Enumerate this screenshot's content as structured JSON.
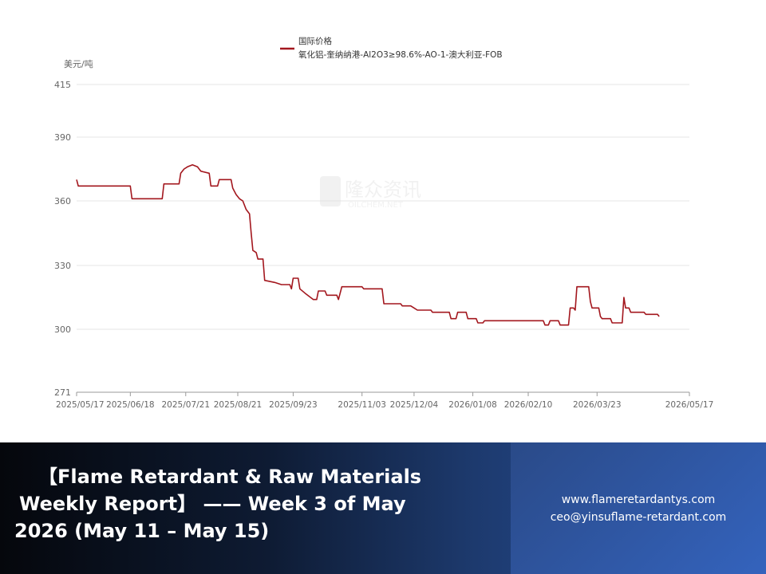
{
  "chart_data": {
    "type": "line",
    "title": "",
    "legend_group": "国际价格",
    "ylabel": "美元/吨",
    "xlabel": "",
    "ylim": [
      271,
      415
    ],
    "yticks": [
      271,
      300,
      330,
      360,
      390,
      415
    ],
    "xticks": [
      "2025/05/17",
      "2025/06/18",
      "2025/07/21",
      "2025/08/21",
      "2025/09/23",
      "2025/11/03",
      "2025/12/04",
      "2026/01/08",
      "2026/02/10",
      "2026/03/23",
      "2026/05/17"
    ],
    "x_start": "2025/05/17",
    "x_end": "2026/05/17",
    "grid": true,
    "legend_position": "top-center",
    "series": [
      {
        "name": "氧化铝-奎纳纳港-Al2O3≥98.6%-AO-1-澳大利亚-FOB",
        "color": "#a3171e",
        "points": [
          [
            "2025/05/17",
            370
          ],
          [
            "2025/05/18",
            367
          ],
          [
            "2025/06/18",
            367
          ],
          [
            "2025/06/19",
            361
          ],
          [
            "2025/07/07",
            361
          ],
          [
            "2025/07/08",
            368
          ],
          [
            "2025/07/17",
            368
          ],
          [
            "2025/07/18",
            373
          ],
          [
            "2025/07/20",
            375
          ],
          [
            "2025/07/22",
            376
          ],
          [
            "2025/07/25",
            377
          ],
          [
            "2025/07/28",
            376
          ],
          [
            "2025/07/30",
            374
          ],
          [
            "2025/08/04",
            373
          ],
          [
            "2025/08/05",
            367
          ],
          [
            "2025/08/09",
            367
          ],
          [
            "2025/08/10",
            370
          ],
          [
            "2025/08/17",
            370
          ],
          [
            "2025/08/18",
            366
          ],
          [
            "2025/08/20",
            363
          ],
          [
            "2025/08/22",
            361
          ],
          [
            "2025/08/24",
            360
          ],
          [
            "2025/08/26",
            356
          ],
          [
            "2025/08/28",
            354
          ],
          [
            "2025/08/29",
            345
          ],
          [
            "2025/08/30",
            337
          ],
          [
            "2025/09/01",
            336
          ],
          [
            "2025/09/02",
            333
          ],
          [
            "2025/09/05",
            333
          ],
          [
            "2025/09/06",
            323
          ],
          [
            "2025/09/12",
            322
          ],
          [
            "2025/09/16",
            321
          ],
          [
            "2025/09/21",
            321
          ],
          [
            "2025/09/22",
            319
          ],
          [
            "2025/09/23",
            324
          ],
          [
            "2025/09/26",
            324
          ],
          [
            "2025/09/27",
            319
          ],
          [
            "2025/09/30",
            317
          ],
          [
            "2025/10/05",
            314
          ],
          [
            "2025/10/07",
            314
          ],
          [
            "2025/10/08",
            318
          ],
          [
            "2025/10/12",
            318
          ],
          [
            "2025/10/13",
            316
          ],
          [
            "2025/10/19",
            316
          ],
          [
            "2025/10/20",
            314
          ],
          [
            "2025/10/22",
            320
          ],
          [
            "2025/11/03",
            320
          ],
          [
            "2025/11/04",
            319
          ],
          [
            "2025/11/15",
            319
          ],
          [
            "2025/11/16",
            312
          ],
          [
            "2025/11/26",
            312
          ],
          [
            "2025/11/27",
            311
          ],
          [
            "2025/12/02",
            311
          ],
          [
            "2025/12/04",
            310
          ],
          [
            "2025/12/06",
            309
          ],
          [
            "2025/12/14",
            309
          ],
          [
            "2025/12/15",
            308
          ],
          [
            "2025/12/25",
            308
          ],
          [
            "2025/12/26",
            305
          ],
          [
            "2025/12/29",
            305
          ],
          [
            "2025/12/30",
            308
          ],
          [
            "2026/01/04",
            308
          ],
          [
            "2026/01/05",
            305
          ],
          [
            "2026/01/10",
            305
          ],
          [
            "2026/01/11",
            303
          ],
          [
            "2026/01/14",
            303
          ],
          [
            "2026/01/15",
            304
          ],
          [
            "2026/02/19",
            304
          ],
          [
            "2026/02/20",
            302
          ],
          [
            "2026/02/22",
            302
          ],
          [
            "2026/02/23",
            304
          ],
          [
            "2026/02/28",
            304
          ],
          [
            "2026/03/01",
            302
          ],
          [
            "2026/03/06",
            302
          ],
          [
            "2026/03/07",
            310
          ],
          [
            "2026/03/09",
            310
          ],
          [
            "2026/03/10",
            309
          ],
          [
            "2026/03/11",
            320
          ],
          [
            "2026/03/18",
            320
          ],
          [
            "2026/03/19",
            313
          ],
          [
            "2026/03/20",
            310
          ],
          [
            "2026/03/24",
            310
          ],
          [
            "2026/03/25",
            306
          ],
          [
            "2026/03/26",
            305
          ],
          [
            "2026/03/31",
            305
          ],
          [
            "2026/04/01",
            303
          ],
          [
            "2026/04/07",
            303
          ],
          [
            "2026/04/08",
            315
          ],
          [
            "2026/04/09",
            310
          ],
          [
            "2026/04/11",
            310
          ],
          [
            "2026/04/12",
            308
          ],
          [
            "2026/04/20",
            308
          ],
          [
            "2026/04/21",
            307
          ],
          [
            "2026/04/28",
            307
          ],
          [
            "2026/04/29",
            306
          ]
        ]
      }
    ]
  },
  "watermark": {
    "brand": "隆众资讯",
    "domain": "OILCHEM.NET"
  },
  "banner": {
    "title_line1": "【Flame Retardant & Raw Materials",
    "title_line2": "Weekly Report】 —— Week 3 of May",
    "title_line3": "2026 (May 11 – May 15)",
    "website": "www.flameretardantys.com",
    "email": "ceo@yinsuflame-retardant.com",
    "colors": {
      "accent": "#3463bd",
      "dark": "#05070c"
    }
  }
}
